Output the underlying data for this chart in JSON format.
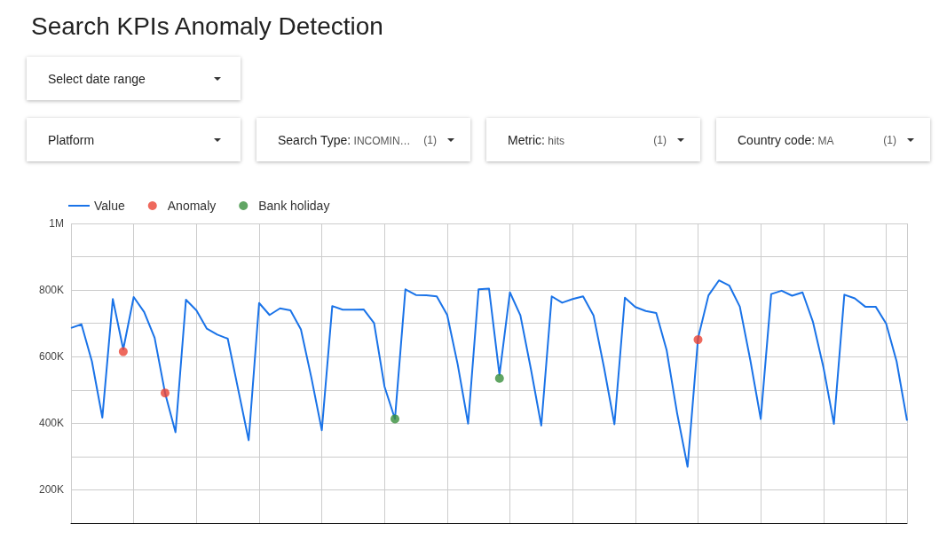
{
  "chart_data": {
    "type": "line",
    "title": "Search KPIs Anomaly Detection",
    "annotations": [
      "Select date range",
      "Platform",
      "Search Type: INCOMIN…",
      "(1)",
      "Metric: hits",
      "(1)",
      "Country code: MA",
      "(1)"
    ],
    "categories": [
      null,
      null,
      null,
      null,
      null,
      null,
      null,
      null,
      null,
      null,
      null,
      null,
      null,
      null,
      null,
      null,
      null,
      null,
      null,
      null,
      null,
      null,
      null,
      null,
      null,
      null,
      null,
      null,
      null,
      null,
      null,
      null,
      null,
      null,
      null,
      null,
      null,
      null,
      null,
      null,
      null,
      null,
      null,
      null,
      null,
      null,
      null,
      null,
      null,
      null,
      null,
      null,
      null,
      null,
      null,
      null,
      null,
      null,
      null,
      null,
      null,
      null,
      null,
      null,
      null,
      null,
      null,
      null,
      null,
      null,
      null,
      null,
      null,
      null,
      null,
      null,
      null,
      null,
      null,
      null,
      null
    ],
    "series": [
      {
        "name": "Value",
        "color": "#1a73e8",
        "values": [
          686000,
          697000,
          586000,
          417000,
          773000,
          622000,
          779000,
          734000,
          657000,
          491000,
          373000,
          771000,
          739000,
          684000,
          666000,
          654000,
          501000,
          349000,
          761000,
          725000,
          745000,
          739000,
          682000,
          537000,
          379000,
          752000,
          741000,
          741000,
          742000,
          701000,
          510000,
          413000,
          802000,
          785000,
          784000,
          781000,
          725000,
          577000,
          399000,
          802000,
          804000,
          545000,
          793000,
          724000,
          564000,
          393000,
          781000,
          762000,
          773000,
          781000,
          724000,
          568000,
          397000,
          777000,
          749000,
          737000,
          731000,
          619000,
          430000,
          269000,
          655000,
          784000,
          829000,
          813000,
          750000,
          590000,
          413000,
          788000,
          798000,
          783000,
          793000,
          704000,
          568000,
          398000,
          786000,
          775000,
          750000,
          750000,
          699000,
          586000,
          408000
        ]
      },
      {
        "name": "Anomaly",
        "type": "scatter",
        "marker": "circle",
        "color": "#ea4335",
        "values": [
          null,
          null,
          null,
          null,
          null,
          615000,
          null,
          null,
          null,
          491000,
          null,
          null,
          null,
          null,
          null,
          null,
          null,
          null,
          null,
          null,
          null,
          null,
          null,
          null,
          null,
          null,
          null,
          null,
          null,
          null,
          null,
          null,
          null,
          null,
          null,
          null,
          null,
          null,
          null,
          null,
          null,
          null,
          null,
          null,
          null,
          null,
          null,
          null,
          null,
          null,
          null,
          null,
          null,
          null,
          null,
          null,
          null,
          null,
          null,
          null,
          651000,
          null,
          null,
          null,
          null,
          null,
          null,
          null,
          null,
          null,
          null,
          null,
          null,
          null,
          null,
          null,
          null,
          null,
          null,
          null,
          null
        ]
      },
      {
        "name": "Bank holiday",
        "type": "scatter",
        "marker": "circle",
        "color": "#388e3c",
        "values": [
          null,
          null,
          null,
          null,
          null,
          null,
          null,
          null,
          null,
          null,
          null,
          null,
          null,
          null,
          null,
          null,
          null,
          null,
          null,
          null,
          null,
          null,
          null,
          null,
          null,
          null,
          null,
          null,
          null,
          null,
          null,
          413000,
          null,
          null,
          null,
          null,
          null,
          null,
          null,
          null,
          null,
          535000,
          null,
          null,
          null,
          null,
          null,
          null,
          null,
          null,
          null,
          null,
          null,
          null,
          null,
          null,
          null,
          null,
          null,
          null,
          null,
          null,
          null,
          null,
          null,
          null,
          null,
          null,
          null,
          null,
          null,
          null,
          null,
          null,
          null,
          null,
          null,
          null,
          null,
          null,
          null
        ]
      }
    ],
    "ylim": [
      100000,
      1000000
    ],
    "yticks": [
      {
        "value": 100000,
        "label": null
      },
      {
        "value": 200000,
        "label": "200K"
      },
      {
        "value": 300000,
        "label": null
      },
      {
        "value": 400000,
        "label": "400K"
      },
      {
        "value": 500000,
        "label": null
      },
      {
        "value": 600000,
        "label": "600K"
      },
      {
        "value": 700000,
        "label": null
      },
      {
        "value": 800000,
        "label": "800K"
      },
      {
        "value": 900000,
        "label": null
      },
      {
        "value": 1000000,
        "label": "1M"
      }
    ],
    "grid": true,
    "legend": "top left",
    "tick_labels": "y",
    "marker": "none",
    "line_style": "solid"
  }
}
